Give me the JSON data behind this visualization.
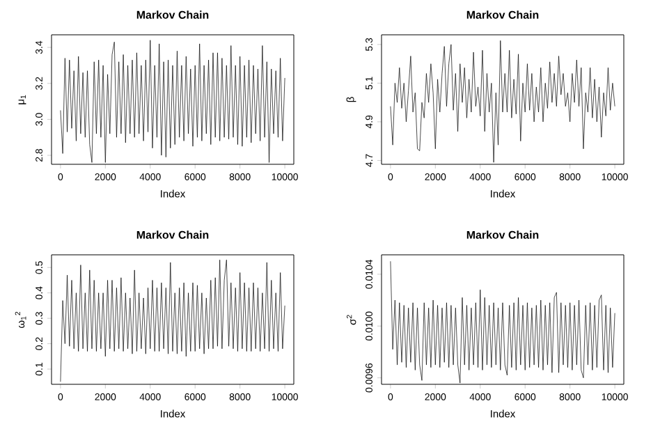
{
  "chart_data": [
    {
      "type": "line",
      "title": "Markov Chain",
      "xlabel": "Index",
      "ylabel": "μ$_{1}$",
      "color": "#000000",
      "xlim": [
        -400,
        10400
      ],
      "ylim": [
        2.75,
        3.47
      ],
      "xticks": [
        0,
        2000,
        4000,
        6000,
        8000,
        10000
      ],
      "yticks": [
        2.8,
        {
          "value": 3.0,
          "label": "3.0"
        },
        3.2,
        3.4
      ],
      "x": [
        0,
        100,
        200,
        300,
        400,
        500,
        600,
        700,
        800,
        900,
        1000,
        1100,
        1200,
        1300,
        1400,
        1500,
        1600,
        1700,
        1800,
        1900,
        2000,
        2100,
        2200,
        2300,
        2400,
        2500,
        2600,
        2700,
        2800,
        2900,
        3000,
        3100,
        3200,
        3300,
        3400,
        3500,
        3600,
        3700,
        3800,
        3900,
        4000,
        4100,
        4200,
        4300,
        4400,
        4500,
        4600,
        4700,
        4800,
        4900,
        5000,
        5100,
        5200,
        5300,
        5400,
        5500,
        5600,
        5700,
        5800,
        5900,
        6000,
        6100,
        6200,
        6300,
        6400,
        6500,
        6600,
        6700,
        6800,
        6900,
        7000,
        7100,
        7200,
        7300,
        7400,
        7500,
        7600,
        7700,
        7800,
        7900,
        8000,
        8100,
        8200,
        8300,
        8400,
        8500,
        8600,
        8700,
        8800,
        8900,
        9000,
        9100,
        9200,
        9300,
        9400,
        9500,
        9600,
        9700,
        9800,
        9900,
        10000
      ],
      "values": [
        3.05,
        2.81,
        3.34,
        2.93,
        3.33,
        2.95,
        3.27,
        2.88,
        3.35,
        2.92,
        3.26,
        2.9,
        3.27,
        2.86,
        2.76,
        3.32,
        2.92,
        3.33,
        2.9,
        3.3,
        2.76,
        3.25,
        2.92,
        3.36,
        3.43,
        2.9,
        3.32,
        2.92,
        3.36,
        2.87,
        3.3,
        2.92,
        3.33,
        2.9,
        3.37,
        2.92,
        3.3,
        2.88,
        3.33,
        2.93,
        3.44,
        2.84,
        3.3,
        2.9,
        3.42,
        2.8,
        3.32,
        2.79,
        3.33,
        2.84,
        3.3,
        2.86,
        3.38,
        2.9,
        3.3,
        2.88,
        3.35,
        2.92,
        3.28,
        2.85,
        3.3,
        2.9,
        3.42,
        2.88,
        3.3,
        2.92,
        3.33,
        2.86,
        3.37,
        2.9,
        3.37,
        2.88,
        3.34,
        2.9,
        3.3,
        2.89,
        3.41,
        2.9,
        3.3,
        2.86,
        3.35,
        2.85,
        3.3,
        2.9,
        3.33,
        2.87,
        3.3,
        2.92,
        3.28,
        2.88,
        3.41,
        2.9,
        3.32,
        2.76,
        3.28,
        2.92,
        3.27,
        2.9,
        3.34,
        2.88,
        3.23
      ]
    },
    {
      "type": "line",
      "title": "Markov Chain",
      "xlabel": "Index",
      "ylabel": "β",
      "color": "#000000",
      "xlim": [
        -400,
        10400
      ],
      "ylim": [
        4.68,
        5.35
      ],
      "xticks": [
        0,
        2000,
        4000,
        6000,
        8000,
        10000
      ],
      "yticks": [
        4.7,
        4.9,
        5.1,
        5.3
      ],
      "x": [
        0,
        100,
        200,
        300,
        400,
        500,
        600,
        700,
        800,
        900,
        1000,
        1100,
        1200,
        1300,
        1400,
        1500,
        1600,
        1700,
        1800,
        1900,
        2000,
        2100,
        2200,
        2300,
        2400,
        2500,
        2600,
        2700,
        2800,
        2900,
        3000,
        3100,
        3200,
        3300,
        3400,
        3500,
        3600,
        3700,
        3800,
        3900,
        4000,
        4100,
        4200,
        4300,
        4400,
        4500,
        4600,
        4700,
        4800,
        4900,
        5000,
        5100,
        5200,
        5300,
        5400,
        5500,
        5600,
        5700,
        5800,
        5900,
        6000,
        6100,
        6200,
        6300,
        6400,
        6500,
        6600,
        6700,
        6800,
        6900,
        7000,
        7100,
        7200,
        7300,
        7400,
        7500,
        7600,
        7700,
        7800,
        7900,
        8000,
        8100,
        8200,
        8300,
        8400,
        8500,
        8600,
        8700,
        8800,
        8900,
        9000,
        9100,
        9200,
        9300,
        9400,
        9500,
        9600,
        9700,
        9800,
        9900,
        10000
      ],
      "values": [
        4.98,
        4.78,
        5.1,
        5.0,
        5.18,
        4.97,
        5.1,
        4.9,
        5.06,
        5.24,
        4.95,
        5.05,
        4.76,
        4.75,
        5.0,
        4.92,
        5.15,
        5.0,
        5.2,
        5.05,
        4.76,
        5.12,
        4.95,
        5.15,
        5.29,
        4.98,
        5.2,
        5.3,
        4.96,
        5.15,
        4.85,
        5.2,
        5.0,
        5.18,
        4.92,
        5.12,
        4.95,
        5.26,
        4.98,
        5.08,
        4.93,
        5.27,
        4.85,
        5.15,
        4.95,
        5.1,
        4.69,
        5.05,
        4.78,
        5.32,
        4.95,
        5.15,
        4.95,
        5.27,
        4.92,
        5.12,
        4.94,
        5.25,
        4.8,
        5.1,
        4.95,
        5.2,
        4.96,
        5.15,
        4.9,
        5.08,
        4.95,
        5.18,
        4.9,
        5.1,
        4.97,
        5.21,
        5.0,
        5.15,
        4.98,
        5.24,
        5.04,
        5.15,
        4.98,
        5.05,
        4.9,
        5.15,
        5.0,
        5.22,
        4.98,
        5.18,
        4.76,
        5.05,
        4.95,
        5.18,
        4.92,
        5.12,
        4.9,
        5.08,
        4.82,
        5.05,
        4.93,
        5.18,
        4.96,
        5.1,
        4.98
      ]
    },
    {
      "type": "line",
      "title": "Markov Chain",
      "xlabel": "Index",
      "ylabel": "ω$_{1}$$^{2}$",
      "color": "#000000",
      "xlim": [
        -400,
        10400
      ],
      "ylim": [
        0.04,
        0.55
      ],
      "xticks": [
        0,
        2000,
        4000,
        6000,
        8000,
        10000
      ],
      "yticks": [
        0.1,
        0.2,
        0.3,
        0.4,
        0.5
      ],
      "x": [
        0,
        100,
        200,
        300,
        400,
        500,
        600,
        700,
        800,
        900,
        1000,
        1100,
        1200,
        1300,
        1400,
        1500,
        1600,
        1700,
        1800,
        1900,
        2000,
        2100,
        2200,
        2300,
        2400,
        2500,
        2600,
        2700,
        2800,
        2900,
        3000,
        3100,
        3200,
        3300,
        3400,
        3500,
        3600,
        3700,
        3800,
        3900,
        4000,
        4100,
        4200,
        4300,
        4400,
        4500,
        4600,
        4700,
        4800,
        4900,
        5000,
        5100,
        5200,
        5300,
        5400,
        5500,
        5600,
        5700,
        5800,
        5900,
        6000,
        6100,
        6200,
        6300,
        6400,
        6500,
        6600,
        6700,
        6800,
        6900,
        7000,
        7100,
        7200,
        7300,
        7400,
        7500,
        7600,
        7700,
        7800,
        7900,
        8000,
        8100,
        8200,
        8300,
        8400,
        8500,
        8600,
        8700,
        8800,
        8900,
        9000,
        9100,
        9200,
        9300,
        9400,
        9500,
        9600,
        9700,
        9800,
        9900,
        10000
      ],
      "values": [
        0.05,
        0.37,
        0.2,
        0.47,
        0.19,
        0.45,
        0.18,
        0.4,
        0.17,
        0.51,
        0.18,
        0.4,
        0.17,
        0.49,
        0.18,
        0.45,
        0.17,
        0.4,
        0.18,
        0.4,
        0.15,
        0.45,
        0.18,
        0.45,
        0.17,
        0.42,
        0.18,
        0.46,
        0.17,
        0.4,
        0.18,
        0.38,
        0.16,
        0.49,
        0.17,
        0.4,
        0.18,
        0.38,
        0.16,
        0.42,
        0.18,
        0.45,
        0.17,
        0.42,
        0.17,
        0.44,
        0.18,
        0.42,
        0.16,
        0.52,
        0.17,
        0.4,
        0.16,
        0.42,
        0.17,
        0.44,
        0.15,
        0.4,
        0.17,
        0.44,
        0.17,
        0.43,
        0.18,
        0.4,
        0.16,
        0.38,
        0.18,
        0.45,
        0.18,
        0.46,
        0.19,
        0.53,
        0.18,
        0.45,
        0.53,
        0.19,
        0.44,
        0.18,
        0.42,
        0.17,
        0.48,
        0.18,
        0.44,
        0.17,
        0.42,
        0.17,
        0.44,
        0.18,
        0.42,
        0.17,
        0.4,
        0.18,
        0.52,
        0.17,
        0.45,
        0.18,
        0.4,
        0.17,
        0.48,
        0.18,
        0.35
      ]
    },
    {
      "type": "line",
      "title": "Markov Chain",
      "xlabel": "Index",
      "ylabel": "σ$^{2}$",
      "color": "#000000",
      "xlim": [
        -400,
        10400
      ],
      "ylim": [
        0.00955,
        0.01055
      ],
      "xticks": [
        0,
        2000,
        4000,
        6000,
        8000,
        10000
      ],
      "yticks": [
        {
          "value": 0.0096,
          "label": "0.0096"
        },
        {
          "value": 0.01,
          "label": "0.0100"
        },
        {
          "value": 0.0104,
          "label": "0.0104"
        }
      ],
      "x": [
        0,
        100,
        200,
        300,
        400,
        500,
        600,
        700,
        800,
        900,
        1000,
        1100,
        1200,
        1300,
        1400,
        1500,
        1600,
        1700,
        1800,
        1900,
        2000,
        2100,
        2200,
        2300,
        2400,
        2500,
        2600,
        2700,
        2800,
        2900,
        3000,
        3100,
        3200,
        3300,
        3400,
        3500,
        3600,
        3700,
        3800,
        3900,
        4000,
        4100,
        4200,
        4300,
        4400,
        4500,
        4600,
        4700,
        4800,
        4900,
        5000,
        5100,
        5200,
        5300,
        5400,
        5500,
        5600,
        5700,
        5800,
        5900,
        6000,
        6100,
        6200,
        6300,
        6400,
        6500,
        6600,
        6700,
        6800,
        6900,
        7000,
        7100,
        7200,
        7300,
        7400,
        7500,
        7600,
        7700,
        7800,
        7900,
        8000,
        8100,
        8200,
        8300,
        8400,
        8500,
        8600,
        8700,
        8800,
        8900,
        9000,
        9100,
        9200,
        9300,
        9400,
        9500,
        9600,
        9700,
        9800,
        9900,
        10000
      ],
      "values": [
        0.0105,
        0.00982,
        0.0102,
        0.0097,
        0.01018,
        0.00972,
        0.01016,
        0.00968,
        0.01014,
        0.00972,
        0.01018,
        0.00966,
        0.01014,
        0.0097,
        0.00958,
        0.01018,
        0.0097,
        0.01014,
        0.00968,
        0.0102,
        0.0097,
        0.01016,
        0.00968,
        0.01014,
        0.00972,
        0.01018,
        0.00968,
        0.01016,
        0.0097,
        0.01014,
        0.0097,
        0.00956,
        0.01022,
        0.0097,
        0.01016,
        0.00966,
        0.01014,
        0.0097,
        0.01018,
        0.00968,
        0.01028,
        0.00966,
        0.01022,
        0.0097,
        0.01016,
        0.00968,
        0.01018,
        0.0097,
        0.01014,
        0.00966,
        0.01018,
        0.0097,
        0.00962,
        0.01016,
        0.00968,
        0.01018,
        0.00966,
        0.01022,
        0.0097,
        0.01016,
        0.00966,
        0.01018,
        0.00968,
        0.01014,
        0.0097,
        0.01016,
        0.00968,
        0.0102,
        0.00966,
        0.01016,
        0.0097,
        0.01018,
        0.00964,
        0.01022,
        0.01026,
        0.00964,
        0.01018,
        0.0097,
        0.01016,
        0.00968,
        0.01018,
        0.00966,
        0.01016,
        0.0097,
        0.0102,
        0.00966,
        0.0096,
        0.01016,
        0.0097,
        0.01018,
        0.00966,
        0.01016,
        0.00968,
        0.0102,
        0.01024,
        0.00966,
        0.01016,
        0.00964,
        0.01014,
        0.00968,
        0.0101
      ]
    }
  ]
}
